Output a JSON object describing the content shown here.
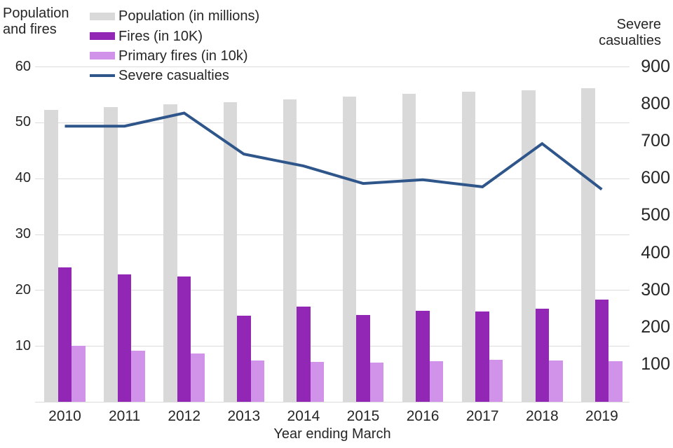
{
  "legend": [
    {
      "label": "Population (in millions)",
      "color": "#d9d9d9",
      "swatch": "bar"
    },
    {
      "label": "Fires (in 10K)",
      "color": "#9327b5",
      "swatch": "bar"
    },
    {
      "label": "Primary fires (in 10k)",
      "color": "#d193e9",
      "swatch": "bar"
    },
    {
      "label": "Severe casualties",
      "color": "#2f568a",
      "swatch": "line"
    }
  ],
  "chart_data": {
    "type": "bar",
    "subtype": "grouped-bars-with-line",
    "categories": [
      "2010",
      "2011",
      "2012",
      "2013",
      "2014",
      "2015",
      "2016",
      "2017",
      "2018",
      "2019"
    ],
    "series": [
      {
        "name": "Population (in millions)",
        "type": "bar",
        "axis": "left",
        "color": "#d9d9d9",
        "values": [
          52.2,
          52.8,
          53.2,
          53.6,
          54.1,
          54.6,
          55.1,
          55.5,
          55.8,
          56.1
        ]
      },
      {
        "name": "Fires (in 10K)",
        "type": "bar",
        "axis": "left",
        "color": "#9327b5",
        "values": [
          24.1,
          22.8,
          22.4,
          15.4,
          17.1,
          15.5,
          16.3,
          16.2,
          16.7,
          18.3
        ]
      },
      {
        "name": "Primary fires (in 10k)",
        "type": "bar",
        "axis": "left",
        "color": "#d193e9",
        "values": [
          10.0,
          9.1,
          8.6,
          7.4,
          7.2,
          7.0,
          7.3,
          7.5,
          7.4,
          7.3
        ]
      },
      {
        "name": "Severe casualties",
        "type": "line",
        "axis": "right",
        "color": "#2f568a",
        "values": [
          740,
          740,
          775,
          665,
          633,
          586,
          596,
          577,
          693,
          570
        ]
      }
    ],
    "left_axis": {
      "title": "Population and fires",
      "range": [
        0,
        60
      ],
      "ticks": [
        10,
        20,
        30,
        40,
        50,
        60
      ]
    },
    "right_axis": {
      "title": "Severe casualties",
      "range": [
        0,
        900
      ],
      "ticks": [
        100,
        200,
        300,
        400,
        500,
        600,
        700,
        800,
        900
      ]
    },
    "x_axis": {
      "title": "Year ending March"
    },
    "grid": true,
    "legend_position": "top-left"
  }
}
